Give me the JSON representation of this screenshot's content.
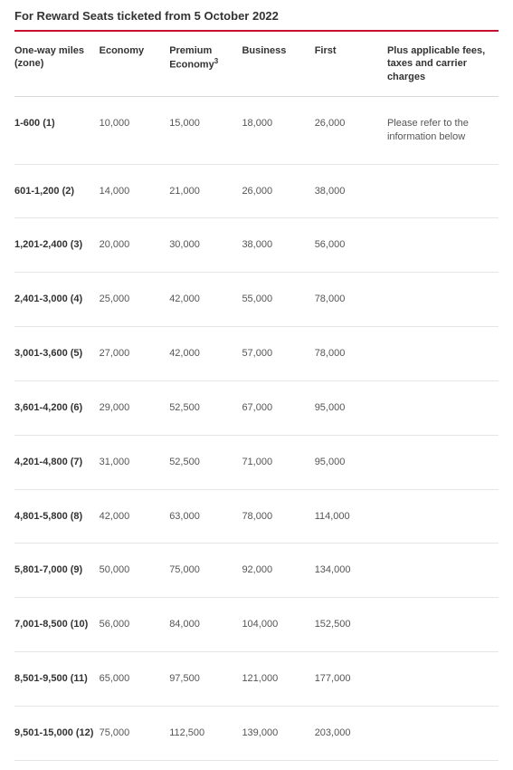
{
  "title": "For Reward Seats ticketed from 5 October 2022",
  "table": {
    "headers": {
      "zone": "One-way miles (zone)",
      "economy": "Economy",
      "premium": "Premium Economy",
      "premium_sup": "3",
      "business": "Business",
      "first": "First",
      "fees": "Plus applicable fees, taxes and carrier charges"
    },
    "note": "Please refer to the information below",
    "rows": [
      {
        "zone": "1-600 (1)",
        "economy": "10,000",
        "premium": "15,000",
        "business": "18,000",
        "first": "26,000",
        "show_note": true
      },
      {
        "zone": "601-1,200 (2)",
        "economy": "14,000",
        "premium": "21,000",
        "business": "26,000",
        "first": "38,000",
        "show_note": false
      },
      {
        "zone": "1,201-2,400 (3)",
        "economy": "20,000",
        "premium": "30,000",
        "business": "38,000",
        "first": "56,000",
        "show_note": false
      },
      {
        "zone": "2,401-3,000 (4)",
        "economy": "25,000",
        "premium": "42,000",
        "business": "55,000",
        "first": "78,000",
        "show_note": false
      },
      {
        "zone": "3,001-3,600 (5)",
        "economy": "27,000",
        "premium": "42,000",
        "business": "57,000",
        "first": "78,000",
        "show_note": false
      },
      {
        "zone": "3,601-4,200 (6)",
        "economy": "29,000",
        "premium": "52,500",
        "business": "67,000",
        "first": "95,000",
        "show_note": false
      },
      {
        "zone": "4,201-4,800 (7)",
        "economy": "31,000",
        "premium": "52,500",
        "business": "71,000",
        "first": "95,000",
        "show_note": false
      },
      {
        "zone": "4,801-5,800 (8)",
        "economy": "42,000",
        "premium": "63,000",
        "business": "78,000",
        "first": "114,000",
        "show_note": false
      },
      {
        "zone": "5,801-7,000 (9)",
        "economy": "50,000",
        "premium": "75,000",
        "business": "92,000",
        "first": "134,000",
        "show_note": false
      },
      {
        "zone": "7,001-8,500 (10)",
        "economy": "56,000",
        "premium": "84,000",
        "business": "104,000",
        "first": "152,500",
        "show_note": false
      },
      {
        "zone": "8,501-9,500 (11)",
        "economy": "65,000",
        "premium": "97,500",
        "business": "121,000",
        "first": "177,000",
        "show_note": false
      },
      {
        "zone": "9,501-15,000 (12)",
        "economy": "75,000",
        "premium": "112,500",
        "business": "139,000",
        "first": "203,000",
        "show_note": false
      }
    ]
  },
  "colors": {
    "accent": "#c8102e",
    "border": "#e5e5e5",
    "header_border": "#d9d9d9",
    "text": "#333333",
    "text_muted": "#555555",
    "background": "#ffffff"
  }
}
